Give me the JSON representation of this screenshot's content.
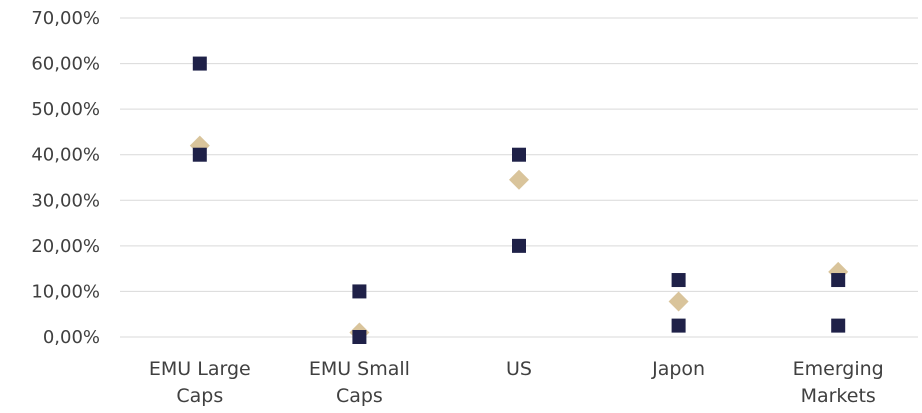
{
  "chart_data": {
    "type": "scatter",
    "title": "",
    "xlabel": "",
    "ylabel": "",
    "categories": [
      [
        "EMU Large",
        "Caps"
      ],
      [
        "EMU Small",
        "Caps"
      ],
      [
        "US"
      ],
      [
        "Japon"
      ],
      [
        "Emerging",
        "Markets"
      ]
    ],
    "ylim": [
      0,
      70
    ],
    "y_ticks": [
      "0,00%",
      "10,00%",
      "20,00%",
      "30,00%",
      "40,00%",
      "50,00%",
      "60,00%",
      "70,00%"
    ],
    "grid": "horizontal",
    "series": [
      {
        "marker": "square",
        "color": "#1f2148",
        "values": [
          60,
          10,
          40,
          12.5,
          12.5
        ]
      },
      {
        "marker": "square",
        "color": "#1f2148",
        "values": [
          40,
          0,
          20,
          2.5,
          2.5
        ]
      },
      {
        "marker": "diamond",
        "color": "#d9c49b",
        "values": [
          42,
          1,
          34.5,
          7.8,
          14.3
        ]
      }
    ]
  }
}
